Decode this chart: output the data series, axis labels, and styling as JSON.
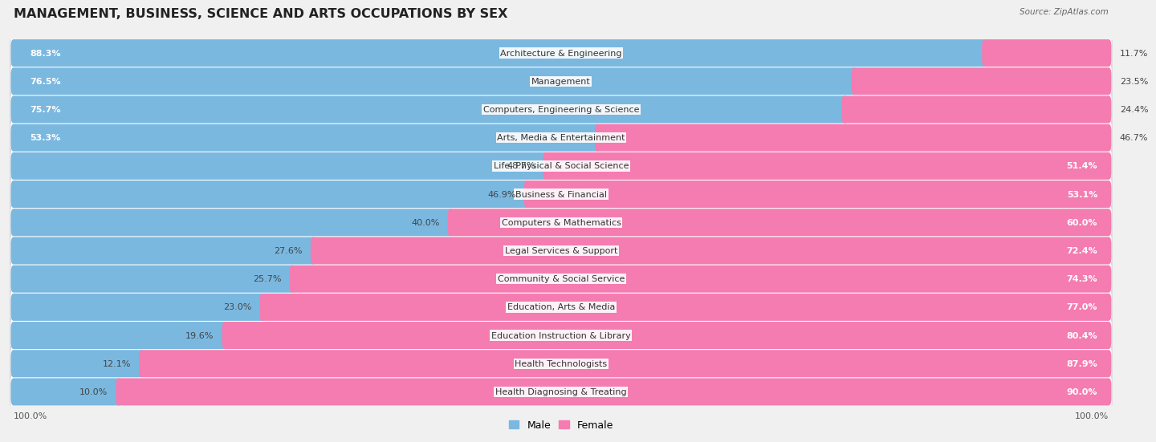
{
  "title": "MANAGEMENT, BUSINESS, SCIENCE AND ARTS OCCUPATIONS BY SEX",
  "source": "Source: ZipAtlas.com",
  "categories": [
    "Architecture & Engineering",
    "Management",
    "Computers, Engineering & Science",
    "Arts, Media & Entertainment",
    "Life, Physical & Social Science",
    "Business & Financial",
    "Computers & Mathematics",
    "Legal Services & Support",
    "Community & Social Service",
    "Education, Arts & Media",
    "Education Instruction & Library",
    "Health Technologists",
    "Health Diagnosing & Treating"
  ],
  "male_pct": [
    88.3,
    76.5,
    75.7,
    53.3,
    48.7,
    46.9,
    40.0,
    27.6,
    25.7,
    23.0,
    19.6,
    12.1,
    10.0
  ],
  "female_pct": [
    11.7,
    23.5,
    24.4,
    46.7,
    51.4,
    53.1,
    60.0,
    72.4,
    74.3,
    77.0,
    80.4,
    87.9,
    90.0
  ],
  "male_color": "#7ab8e0",
  "female_color": "#f47cb0",
  "bg_color": "#f0f0f0",
  "row_bg_even": "#ffffff",
  "row_bg_odd": "#f7f7f7",
  "title_fontsize": 11.5,
  "label_fontsize": 8.0,
  "pct_fontsize": 8.0,
  "legend_fontsize": 9,
  "source_fontsize": 7.5
}
